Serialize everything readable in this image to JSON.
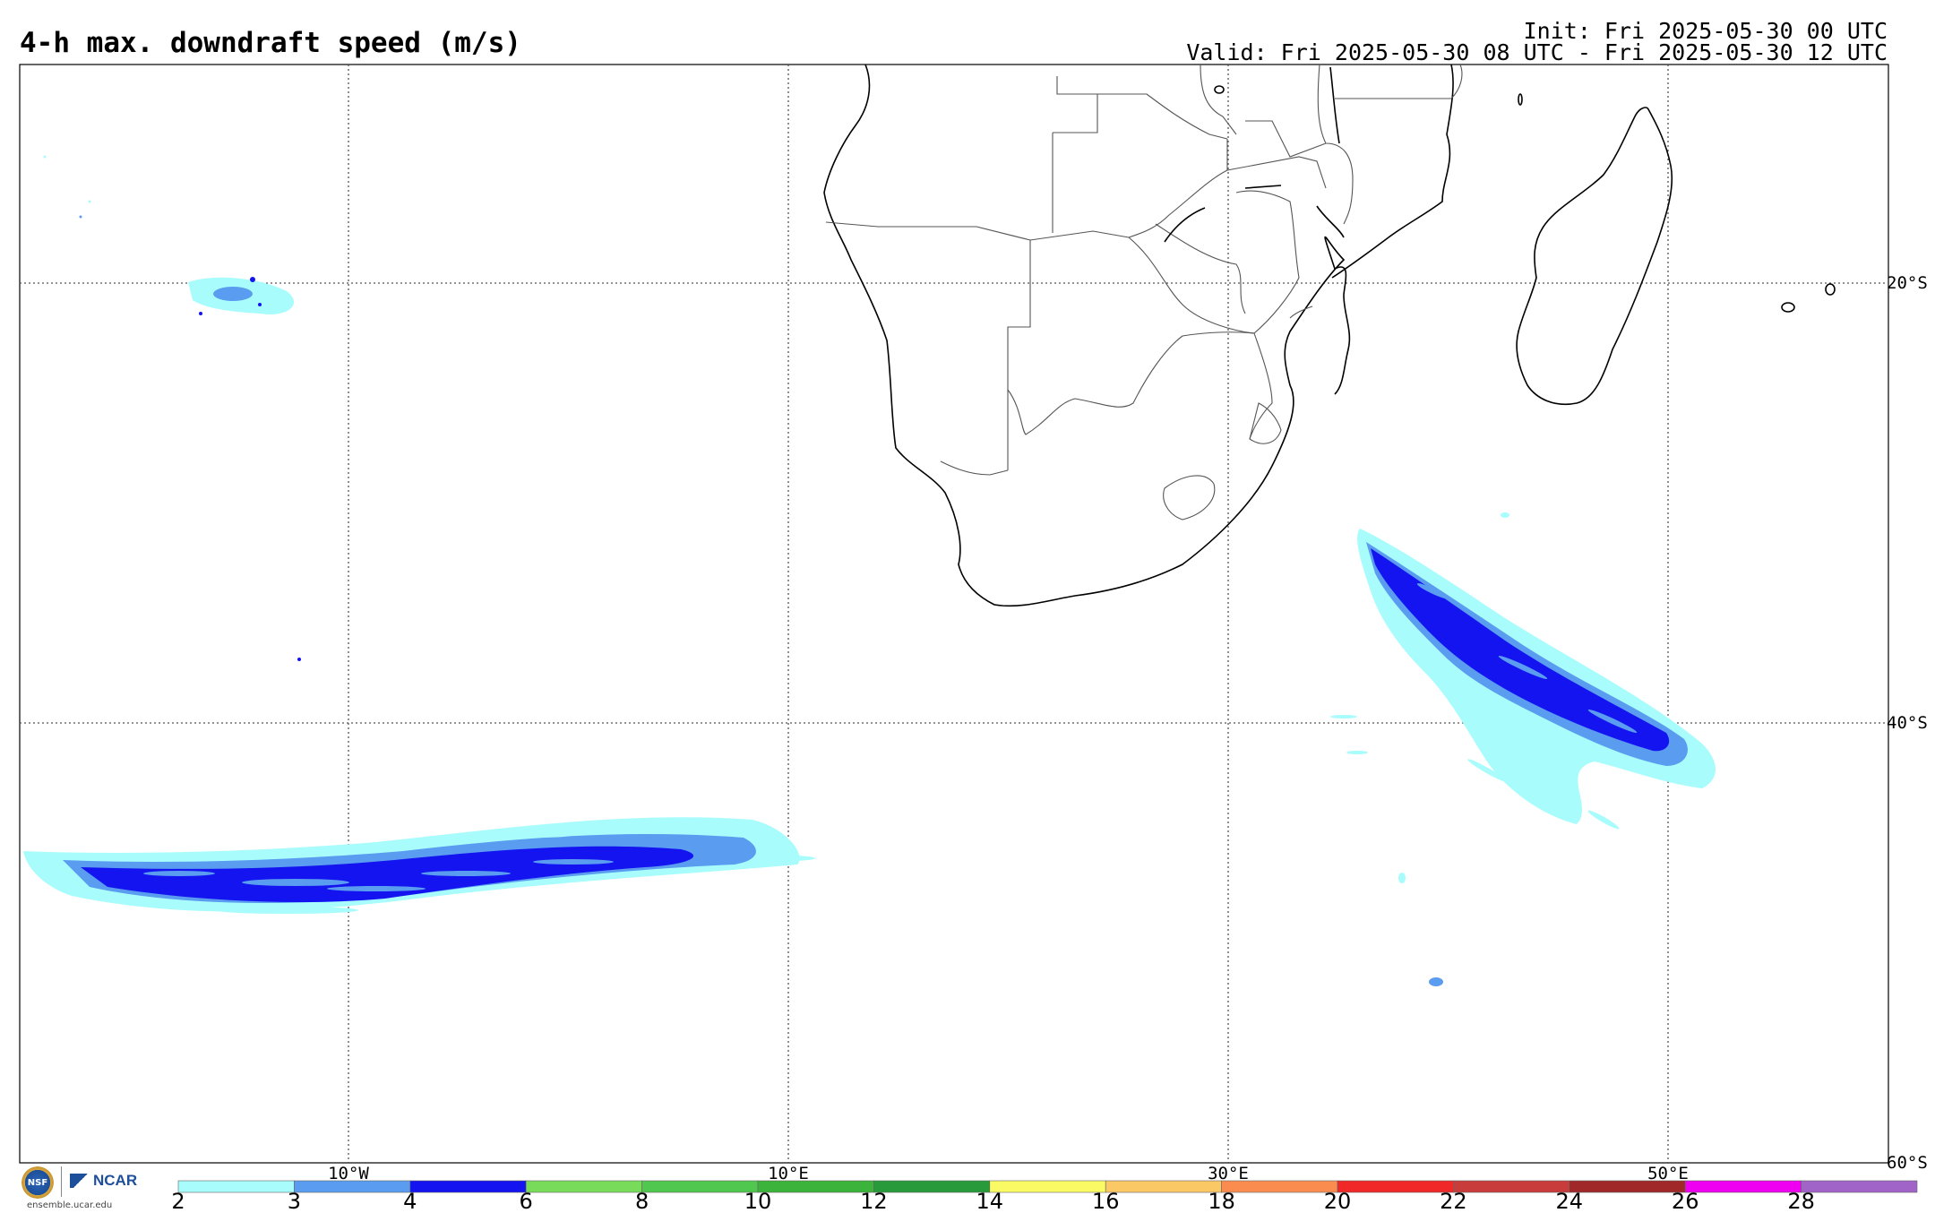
{
  "title": "4-h max. downdraft speed (m/s)",
  "init": "Init: Fri 2025-05-30 00 UTC",
  "valid": "Valid: Fri 2025-05-30 08 UTC - Fri 2025-05-30 12 UTC",
  "longitude_labels": [
    "10°W",
    "10°E",
    "30°E",
    "50°E"
  ],
  "latitude_labels": [
    "20°S",
    "40°S",
    "60°S"
  ],
  "colorbar": {
    "ticks": [
      "2",
      "3",
      "4",
      "6",
      "8",
      "10",
      "12",
      "14",
      "16",
      "18",
      "20",
      "22",
      "24",
      "26",
      "28"
    ],
    "colors": [
      "#a8fcfc",
      "#5a9cf0",
      "#1414f0",
      "#78dc5a",
      "#50c850",
      "#3cb43c",
      "#289a3c",
      "#fafa64",
      "#fac864",
      "#fa8c50",
      "#f02828",
      "#c83c3c",
      "#a02828",
      "#f000f0",
      "#a064c8"
    ]
  },
  "logos": {
    "nsf": "NSF",
    "ncar": "NCAR",
    "site": "ensemble.ucar.edu"
  },
  "colors": {
    "light_cyan": "#a8fcfc",
    "mid_blue": "#5a9cf0",
    "dark_blue": "#1414f0"
  }
}
